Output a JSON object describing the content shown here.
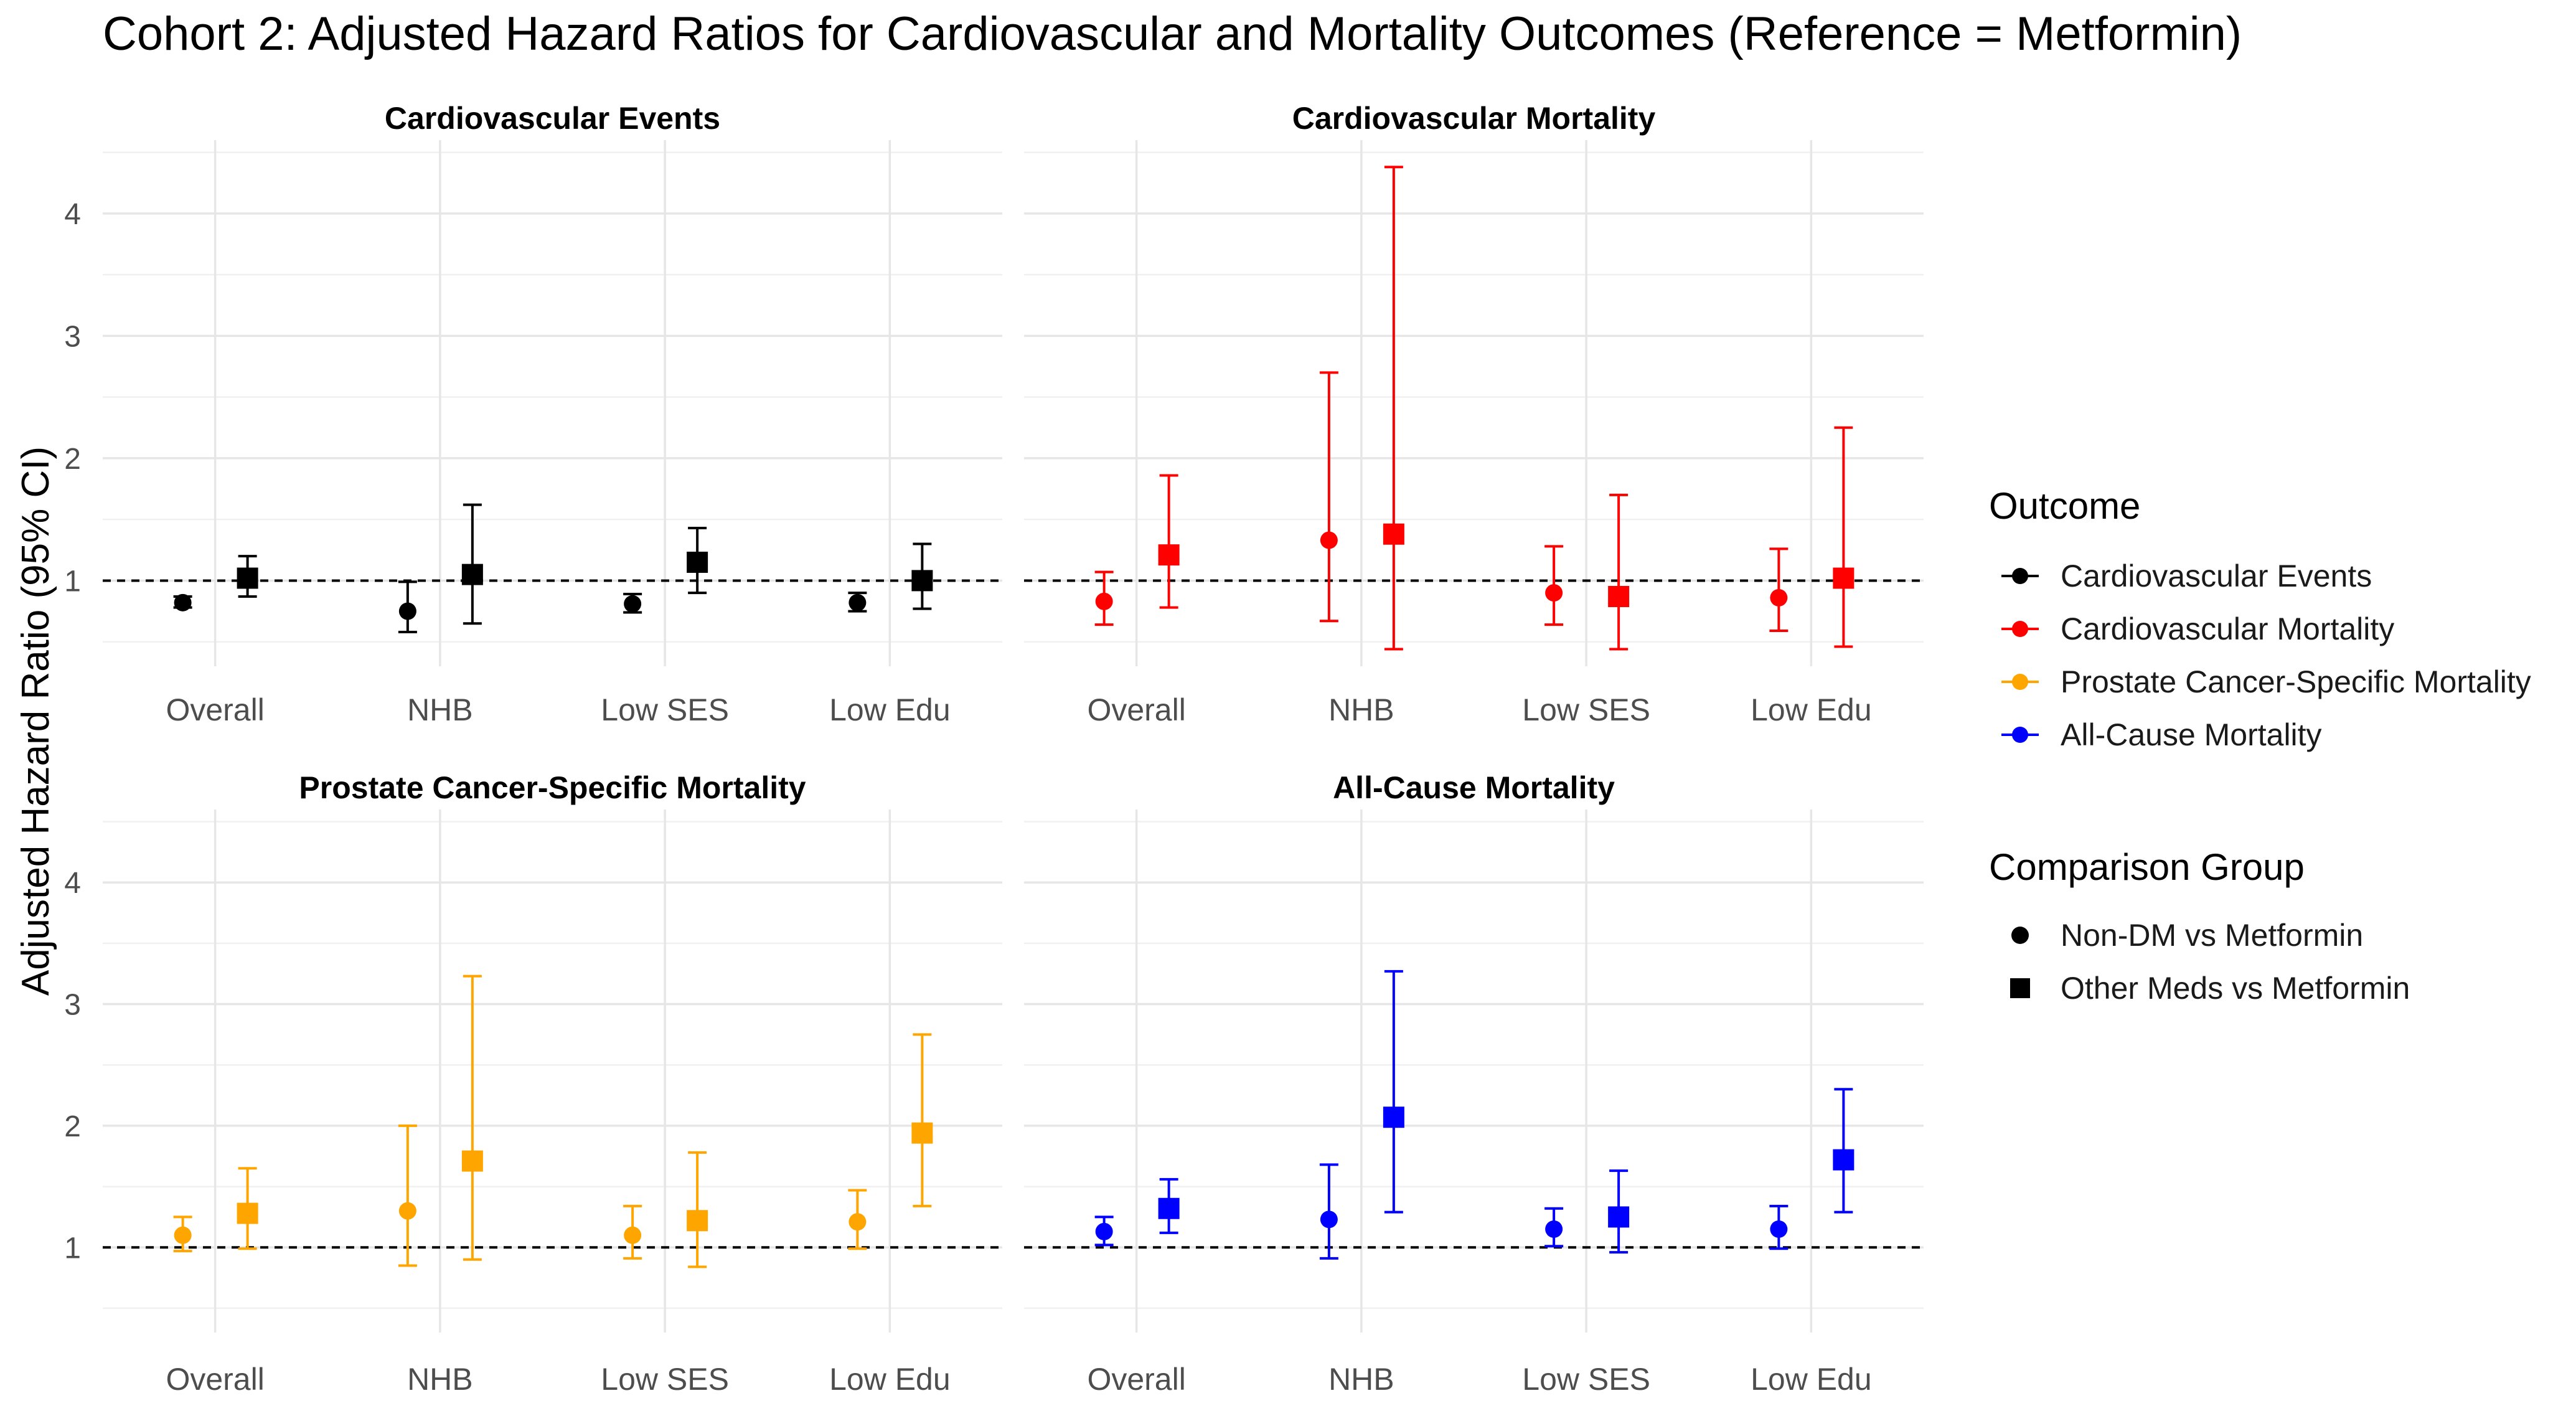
{
  "chart_data": {
    "type": "errorbar",
    "title": "Cohort 2: Adjusted Hazard Ratios for Cardiovascular and Mortality Outcomes (Reference = Metformin)",
    "ylabel": "Adjusted Hazard Ratio (95% CI)",
    "xlabel": "",
    "categories": [
      "Overall",
      "NHB",
      "Low SES",
      "Low Edu"
    ],
    "y_ticks": [
      "1",
      "2",
      "3",
      "4"
    ],
    "ylim": [
      0.3,
      4.6
    ],
    "reference_line": 1,
    "legend": {
      "outcome_title": "Outcome",
      "outcomes": [
        "Cardiovascular Events",
        "Cardiovascular Mortality",
        "Prostate Cancer-Specific Mortality",
        "All-Cause Mortality"
      ],
      "group_title": "Comparison Group",
      "groups": [
        "Non-DM vs Metformin",
        "Other Meds vs Metformin"
      ]
    },
    "colors": {
      "Cardiovascular Events": "#000000",
      "Cardiovascular Mortality": "#ff0000",
      "Prostate Cancer-Specific Mortality": "#ffa500",
      "All-Cause Mortality": "#0000ff"
    },
    "panels": [
      {
        "title": "Cardiovascular Events",
        "outcome": "Cardiovascular Events",
        "series": [
          {
            "group": "Non-DM vs Metformin",
            "shape": "circle",
            "points": [
              {
                "category": "Overall",
                "hr": 0.82,
                "lo": 0.78,
                "hi": 0.87
              },
              {
                "category": "NHB",
                "hr": 0.75,
                "lo": 0.58,
                "hi": 0.99
              },
              {
                "category": "Low SES",
                "hr": 0.81,
                "lo": 0.74,
                "hi": 0.89
              },
              {
                "category": "Low Edu",
                "hr": 0.82,
                "lo": 0.75,
                "hi": 0.9
              }
            ]
          },
          {
            "group": "Other Meds vs Metformin",
            "shape": "square",
            "points": [
              {
                "category": "Overall",
                "hr": 1.02,
                "lo": 0.87,
                "hi": 1.2
              },
              {
                "category": "NHB",
                "hr": 1.05,
                "lo": 0.65,
                "hi": 1.62
              },
              {
                "category": "Low SES",
                "hr": 1.15,
                "lo": 0.9,
                "hi": 1.43
              },
              {
                "category": "Low Edu",
                "hr": 1.0,
                "lo": 0.77,
                "hi": 1.3
              }
            ]
          }
        ]
      },
      {
        "title": "Cardiovascular Mortality",
        "outcome": "Cardiovascular Mortality",
        "series": [
          {
            "group": "Non-DM vs Metformin",
            "shape": "circle",
            "points": [
              {
                "category": "Overall",
                "hr": 0.83,
                "lo": 0.64,
                "hi": 1.07
              },
              {
                "category": "NHB",
                "hr": 1.33,
                "lo": 0.67,
                "hi": 2.7
              },
              {
                "category": "Low SES",
                "hr": 0.9,
                "lo": 0.64,
                "hi": 1.28
              },
              {
                "category": "Low Edu",
                "hr": 0.86,
                "lo": 0.59,
                "hi": 1.26
              }
            ]
          },
          {
            "group": "Other Meds vs Metformin",
            "shape": "square",
            "points": [
              {
                "category": "Overall",
                "hr": 1.21,
                "lo": 0.78,
                "hi": 1.86
              },
              {
                "category": "NHB",
                "hr": 1.38,
                "lo": 0.44,
                "hi": 4.38
              },
              {
                "category": "Low SES",
                "hr": 0.87,
                "lo": 0.44,
                "hi": 1.7
              },
              {
                "category": "Low Edu",
                "hr": 1.02,
                "lo": 0.46,
                "hi": 2.25
              }
            ]
          }
        ]
      },
      {
        "title": "Prostate Cancer-Specific Mortality",
        "outcome": "Prostate Cancer-Specific Mortality",
        "series": [
          {
            "group": "Non-DM vs Metformin",
            "shape": "circle",
            "points": [
              {
                "category": "Overall",
                "hr": 1.1,
                "lo": 0.97,
                "hi": 1.25
              },
              {
                "category": "NHB",
                "hr": 1.3,
                "lo": 0.85,
                "hi": 2.0
              },
              {
                "category": "Low SES",
                "hr": 1.1,
                "lo": 0.91,
                "hi": 1.34
              },
              {
                "category": "Low Edu",
                "hr": 1.21,
                "lo": 0.99,
                "hi": 1.47
              }
            ]
          },
          {
            "group": "Other Meds vs Metformin",
            "shape": "square",
            "points": [
              {
                "category": "Overall",
                "hr": 1.28,
                "lo": 0.99,
                "hi": 1.65
              },
              {
                "category": "NHB",
                "hr": 1.71,
                "lo": 0.9,
                "hi": 3.23
              },
              {
                "category": "Low SES",
                "hr": 1.22,
                "lo": 0.84,
                "hi": 1.78
              },
              {
                "category": "Low Edu",
                "hr": 1.94,
                "lo": 1.34,
                "hi": 2.75
              }
            ]
          }
        ]
      },
      {
        "title": "All-Cause Mortality",
        "outcome": "All-Cause Mortality",
        "series": [
          {
            "group": "Non-DM vs Metformin",
            "shape": "circle",
            "points": [
              {
                "category": "Overall",
                "hr": 1.13,
                "lo": 1.02,
                "hi": 1.25
              },
              {
                "category": "NHB",
                "hr": 1.23,
                "lo": 0.91,
                "hi": 1.68
              },
              {
                "category": "Low SES",
                "hr": 1.15,
                "lo": 1.01,
                "hi": 1.32
              },
              {
                "category": "Low Edu",
                "hr": 1.15,
                "lo": 0.99,
                "hi": 1.34
              }
            ]
          },
          {
            "group": "Other Meds vs Metformin",
            "shape": "square",
            "points": [
              {
                "category": "Overall",
                "hr": 1.32,
                "lo": 1.12,
                "hi": 1.56
              },
              {
                "category": "NHB",
                "hr": 2.07,
                "lo": 1.29,
                "hi": 3.27
              },
              {
                "category": "Low SES",
                "hr": 1.25,
                "lo": 0.96,
                "hi": 1.63
              },
              {
                "category": "Low Edu",
                "hr": 1.72,
                "lo": 1.29,
                "hi": 2.3
              }
            ]
          }
        ]
      }
    ]
  }
}
